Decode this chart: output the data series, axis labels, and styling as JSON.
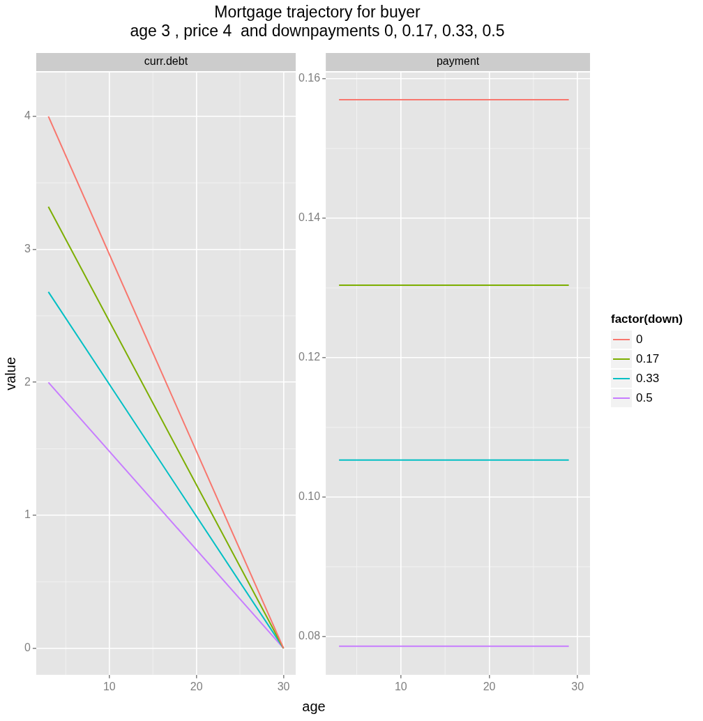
{
  "chart_data": [
    {
      "type": "line",
      "title": "Mortgage trajectory for buyer\nage 3 , price 4  and downpayments 0, 0.17, 0.33, 0.5",
      "subtitle": "curr.debt",
      "xlabel": "age",
      "ylabel": "value",
      "x": [
        3,
        30
      ],
      "series": [
        {
          "color": "#f8766d",
          "values": [
            4,
            0
          ]
        },
        {
          "color": "#7cae00",
          "values": [
            3.32,
            0
          ]
        },
        {
          "color": "#00bfc4",
          "values": [
            2.68,
            0
          ]
        },
        {
          "color": "#c77cff",
          "values": [
            2,
            0
          ]
        }
      ],
      "xlim": [
        1.6,
        31.4
      ],
      "xticks": [
        10,
        20,
        30
      ],
      "ylim": [
        -0.2,
        4.33
      ],
      "yticks": [
        0,
        1,
        2,
        3,
        4
      ],
      "grid": true
    },
    {
      "type": "line",
      "subtitle": "payment",
      "legend_title": "factor(down)",
      "x": [
        3,
        29
      ],
      "series": [
        {
          "name": "0",
          "color": "#f8766d",
          "values": [
            0.157,
            0.157
          ]
        },
        {
          "name": "0.17",
          "color": "#7cae00",
          "values": [
            0.1304,
            0.1304
          ]
        },
        {
          "name": "0.33",
          "color": "#00bfc4",
          "values": [
            0.1053,
            0.1053
          ]
        },
        {
          "name": "0.5",
          "color": "#c77cff",
          "values": [
            0.0786,
            0.0786
          ]
        }
      ],
      "xlim": [
        1.5,
        31.4
      ],
      "xticks": [
        10,
        20,
        30
      ],
      "ylim": [
        0.0745,
        0.1609
      ],
      "yticks": [
        0.08,
        {
          "value": 0.1,
          "label": "0.10"
        },
        0.12,
        0.14,
        0.16
      ],
      "grid": true,
      "legend": "right"
    }
  ]
}
